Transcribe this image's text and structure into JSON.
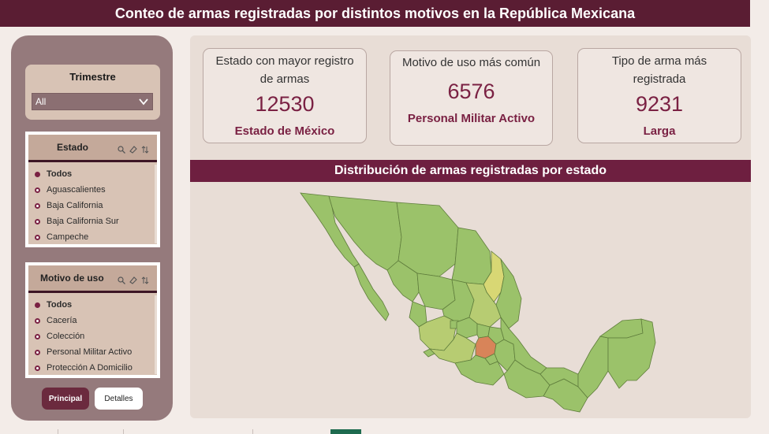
{
  "header": {
    "title": "Conteo de armas registradas por distintos motivos en la República Mexicana"
  },
  "trimestre": {
    "title": "Trimestre",
    "selected": "All",
    "icon": "chevron-down-icon"
  },
  "estado_slicer": {
    "title": "Estado",
    "icons": [
      "search-icon",
      "eraser-icon",
      "sort-icon"
    ],
    "items": [
      "Todos",
      "Aguascalientes",
      "Baja California",
      "Baja California Sur",
      "Campeche"
    ]
  },
  "motivo_slicer": {
    "title": "Motivo de uso",
    "icons": [
      "search-icon",
      "eraser-icon",
      "sort-icon"
    ],
    "items": [
      "Todos",
      "Cacería",
      "Colección",
      "Personal Militar Activo",
      "Protección A Domicilio"
    ]
  },
  "nav": {
    "principal": "Principal",
    "detalles": "Detalles"
  },
  "kpis": [
    {
      "label_1": "Estado con mayor registro",
      "label_2": "de armas",
      "value": "12530",
      "sub": "Estado de México"
    },
    {
      "label_1": "Motivo de uso más común",
      "label_2": "",
      "value": "6576",
      "sub": "Personal Militar Activo"
    },
    {
      "label_1": "Tipo de arma más",
      "label_2": "registrada",
      "value": "9231",
      "sub": "Larga"
    }
  ],
  "map": {
    "title": "Distribución de armas registradas por estado",
    "colors": {
      "base": "#9bc26a",
      "light": "#b7cc72",
      "mid": "#d8d774",
      "high": "#d88459",
      "border": "#5f7d3c"
    }
  }
}
